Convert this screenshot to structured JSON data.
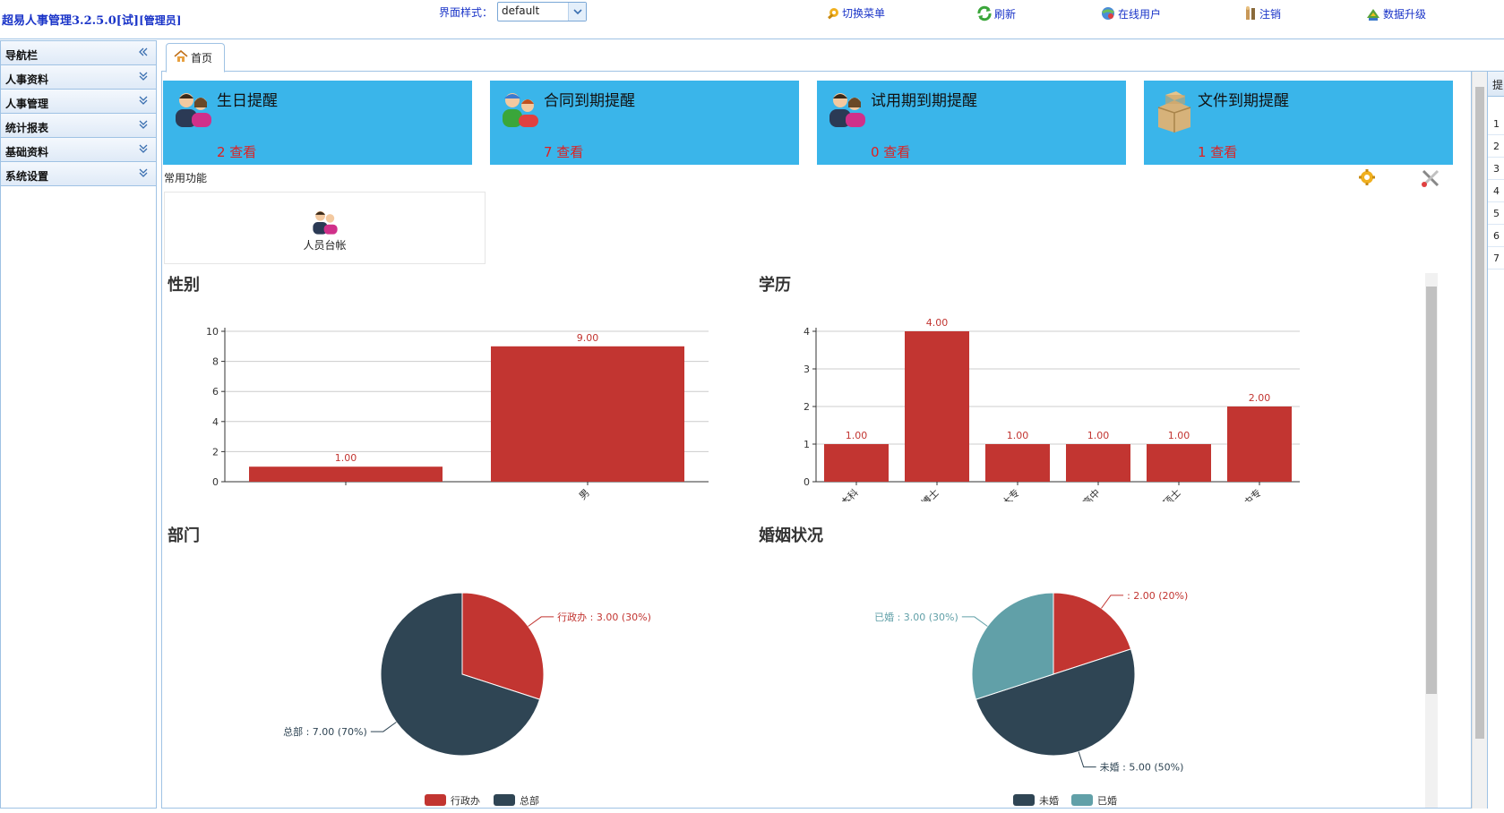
{
  "header": {
    "app_title": "超易人事管理3.2.5.0[试]",
    "role": "[管理员]",
    "theme_label": "界面样式：",
    "theme_value": "default",
    "links": [
      {
        "label": "切换菜单",
        "icon": "key-gear-icon"
      },
      {
        "label": "刷新",
        "icon": "refresh-icon"
      },
      {
        "label": "在线用户",
        "icon": "online-users-icon"
      },
      {
        "label": "注销",
        "icon": "logout-icon"
      },
      {
        "label": "数据升级",
        "icon": "upgrade-icon"
      }
    ]
  },
  "sidebar": {
    "title": "导航栏",
    "items": [
      {
        "label": "人事资料"
      },
      {
        "label": "人事管理"
      },
      {
        "label": "统计报表"
      },
      {
        "label": "基础资料"
      },
      {
        "label": "系统设置"
      }
    ]
  },
  "tabs": [
    {
      "label": "首页",
      "icon": "home-icon"
    }
  ],
  "cards": [
    {
      "title": "生日提醒",
      "count": "2 查看",
      "icon": "people-icon"
    },
    {
      "title": "合同到期提醒",
      "count": "7 查看",
      "icon": "contract-people-icon"
    },
    {
      "title": "试用期到期提醒",
      "count": "0 查看",
      "icon": "people-icon"
    },
    {
      "title": "文件到期提醒",
      "count": "1 查看",
      "icon": "boxes-icon"
    }
  ],
  "common_functions": {
    "label": "常用功能",
    "items": [
      {
        "label": "人员台帐",
        "icon": "people-icon"
      }
    ]
  },
  "right_panel": {
    "header": "提",
    "rows": [
      "1",
      "2",
      "3",
      "4",
      "5",
      "6",
      "7"
    ]
  },
  "colors": {
    "accent_card": "#3ab5ea",
    "bar": "#c23531",
    "dark": "#2f4554",
    "teal": "#61a0a8",
    "count": "#e02020"
  },
  "chart_data": [
    {
      "type": "bar",
      "title": "性别",
      "categories": [
        "",
        "男"
      ],
      "values": [
        1.0,
        9.0
      ],
      "value_labels": [
        "1.00",
        "9.00"
      ],
      "ylim": [
        0,
        10
      ],
      "yticks": [
        0,
        2,
        4,
        6,
        8,
        10
      ]
    },
    {
      "type": "bar",
      "title": "学历",
      "categories": [
        "本科",
        "博士",
        "大专",
        "高中",
        "硕士",
        "中专"
      ],
      "values": [
        1.0,
        4.0,
        1.0,
        1.0,
        1.0,
        2.0
      ],
      "value_labels": [
        "1.00",
        "4.00",
        "1.00",
        "1.00",
        "1.00",
        "2.00"
      ],
      "ylim": [
        0,
        4
      ],
      "yticks": [
        0,
        1,
        2,
        3,
        4
      ]
    },
    {
      "type": "pie",
      "title": "部门",
      "slices": [
        {
          "name": "行政办",
          "value": 3.0,
          "label": "行政办 : 3.00 (30%)"
        },
        {
          "name": "总部",
          "value": 7.0,
          "label": "总部 : 7.00 (70%)"
        }
      ],
      "legend": [
        "行政办",
        "总部"
      ]
    },
    {
      "type": "pie",
      "title": "婚姻状况",
      "slices": [
        {
          "name": "",
          "value": 2.0,
          "label": " : 2.00 (20%)"
        },
        {
          "name": "未婚",
          "value": 5.0,
          "label": "未婚 : 5.00 (50%)"
        },
        {
          "name": "已婚",
          "value": 3.0,
          "label": "已婚 : 3.00 (30%)"
        }
      ],
      "legend": [
        "未婚",
        "已婚"
      ]
    }
  ]
}
